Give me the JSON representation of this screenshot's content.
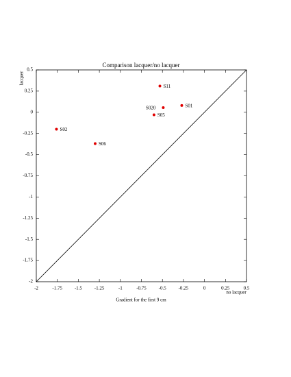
{
  "chart_data": {
    "type": "scatter",
    "title": "Comparison lacquer/no lacquer",
    "x_label": "Gradient for the first 9 cm",
    "x_label_right": "no lacquer",
    "y_label": "lacquer",
    "x": [
      -0.53,
      -0.27,
      -0.49,
      -0.6,
      -1.76,
      -1.3
    ],
    "series": [
      {
        "color": "#e00000",
        "values": [
          0.31,
          0.08,
          0.055,
          -0.03,
          -0.2,
          -0.37
        ]
      }
    ],
    "point_labels": [
      "S11",
      "S01",
      "S020",
      "S05",
      "S02",
      "S06"
    ],
    "xlim": [
      -2,
      0.5
    ],
    "xticks": [
      -2,
      -1.75,
      -1.5,
      -1.25,
      -1,
      -0.75,
      -0.5,
      -0.25,
      0,
      0.25,
      0.5
    ],
    "ylim": [
      -2,
      0.5
    ],
    "yticks": [
      -2,
      -1.75,
      -1.5,
      -1.25,
      -1,
      -0.75,
      -0.5,
      -0.25,
      0,
      0.25,
      0.5
    ]
  }
}
